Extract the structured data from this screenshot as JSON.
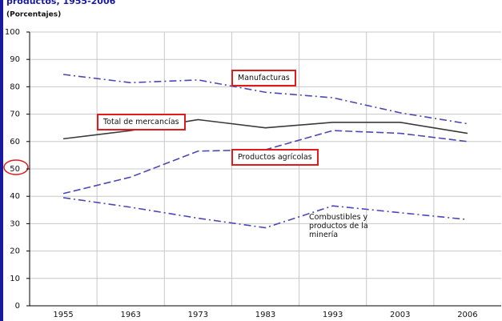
{
  "chart_data": {
    "type": "line",
    "title": "productos, 1955-2006",
    "subtitle": "(Porcentajes)",
    "categories": [
      "1955",
      "1963",
      "1973",
      "1983",
      "1993",
      "2003",
      "2006"
    ],
    "series": [
      {
        "name": "Manufacturas",
        "color": "#4b48b4",
        "dash": "dashdot",
        "values": [
          84.5,
          81.5,
          82.5,
          78,
          76,
          70.5,
          66.5
        ]
      },
      {
        "name": "Total de mercancías",
        "color": "#3a3a3a",
        "dash": "solid",
        "values": [
          61,
          64,
          68,
          65,
          67,
          67,
          63
        ]
      },
      {
        "name": "Productos agrícolas",
        "color": "#4b48b4",
        "dash": "dashed",
        "values": [
          41,
          47,
          56.5,
          57,
          64,
          63,
          60
        ]
      },
      {
        "name": "Combustibles y productos de la minería",
        "color": "#4b48b4",
        "dash": "dashdot",
        "values": [
          39.5,
          36,
          32,
          28.5,
          36.5,
          34,
          31.5
        ]
      }
    ],
    "ylim": [
      0,
      100
    ],
    "yticks": [
      0,
      10,
      20,
      30,
      40,
      50,
      60,
      70,
      80,
      90,
      100
    ],
    "grid": true
  }
}
